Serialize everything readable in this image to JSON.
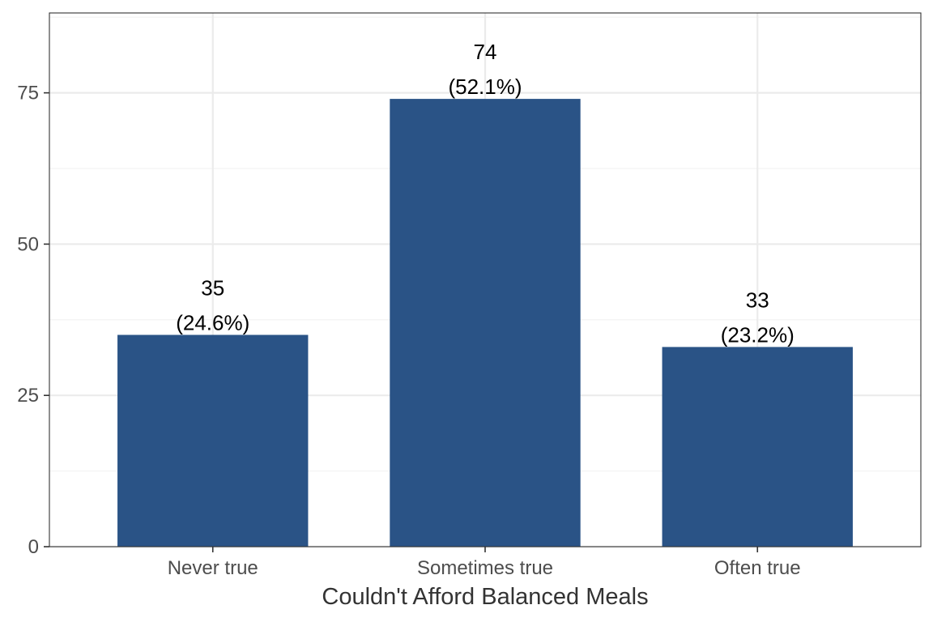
{
  "chart_data": {
    "type": "bar",
    "categories": [
      "Never true",
      "Sometimes true",
      "Often true"
    ],
    "values": [
      35,
      74,
      33
    ],
    "value_labels": [
      "35",
      "74",
      "33"
    ],
    "percent_labels": [
      "(24.6%)",
      "(52.1%)",
      "(23.2%)"
    ],
    "xlabel": "Couldn't Afford Balanced Meals",
    "ylabel": "",
    "ylim": [
      0,
      88.2
    ],
    "yticks": [
      0,
      25,
      50,
      75
    ],
    "ytick_labels": [
      "0",
      "25",
      "50",
      "75"
    ],
    "grid": true,
    "colors": {
      "bar": "#2a5386",
      "grid_major": "#ebebeb",
      "grid_minor": "#f2f2f2",
      "panel_border": "#333333"
    }
  }
}
